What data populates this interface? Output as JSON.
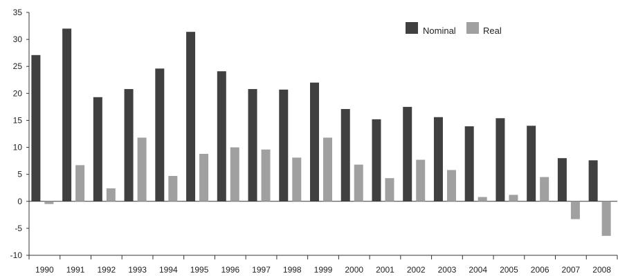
{
  "chart_data": {
    "type": "bar",
    "categories": [
      "1990",
      "1991",
      "1992",
      "1993",
      "1994",
      "1995",
      "1996",
      "1997",
      "1998",
      "1999",
      "2000",
      "2001",
      "2002",
      "2003",
      "2004",
      "2005",
      "2006",
      "2007",
      "2008"
    ],
    "series": [
      {
        "name": "Nominal",
        "color": "#404040",
        "values": [
          27.1,
          32.0,
          19.3,
          20.8,
          24.6,
          31.4,
          24.1,
          20.8,
          20.7,
          22.0,
          17.1,
          15.2,
          17.5,
          15.6,
          13.9,
          15.4,
          14.0,
          8.0,
          7.6
        ]
      },
      {
        "name": "Real",
        "color": "#a0a0a0",
        "values": [
          -0.5,
          6.7,
          2.4,
          11.8,
          4.7,
          8.8,
          10.0,
          9.6,
          8.1,
          11.8,
          6.8,
          4.3,
          7.7,
          5.8,
          0.8,
          1.2,
          4.5,
          -3.3,
          -6.4
        ]
      }
    ],
    "title": "",
    "xlabel": "",
    "ylabel": "",
    "ylim": [
      -10,
      35
    ],
    "yticks": [
      "35",
      "30",
      "25",
      "20",
      "15",
      "10",
      "5",
      "0",
      "-5",
      "-10"
    ],
    "grid": false,
    "legend": "top-right"
  }
}
